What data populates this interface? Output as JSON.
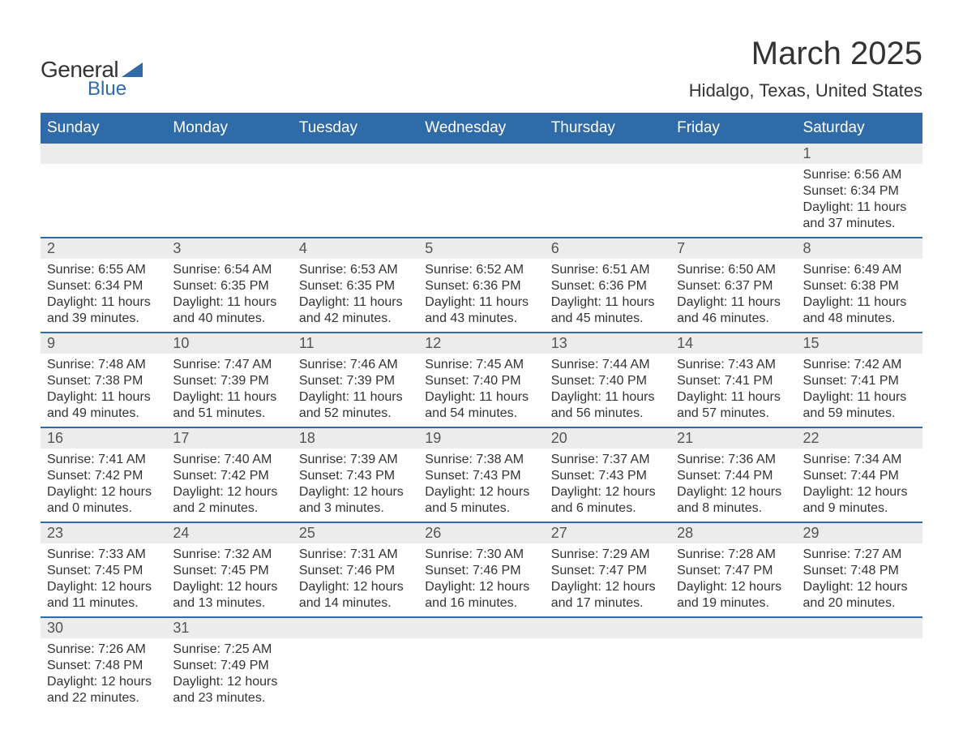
{
  "logo": {
    "line1": "General",
    "line2": "Blue"
  },
  "title": "March 2025",
  "subtitle": "Hidalgo, Texas, United States",
  "colors": {
    "header_bg": "#2f6ba8",
    "header_text": "#ffffff",
    "daynum_bg": "#ececec",
    "daynum_text": "#555555",
    "body_text": "#333333",
    "border": "#2f6ba8",
    "page_bg": "#ffffff"
  },
  "typography": {
    "title_fontsize": 40,
    "subtitle_fontsize": 22,
    "header_fontsize": 19,
    "daynum_fontsize": 18,
    "cell_fontsize": 16
  },
  "day_headers": [
    "Sunday",
    "Monday",
    "Tuesday",
    "Wednesday",
    "Thursday",
    "Friday",
    "Saturday"
  ],
  "weeks": [
    [
      null,
      null,
      null,
      null,
      null,
      null,
      {
        "n": "1",
        "sr": "6:56 AM",
        "ss": "6:34 PM",
        "dl": "11 hours and 37 minutes."
      }
    ],
    [
      {
        "n": "2",
        "sr": "6:55 AM",
        "ss": "6:34 PM",
        "dl": "11 hours and 39 minutes."
      },
      {
        "n": "3",
        "sr": "6:54 AM",
        "ss": "6:35 PM",
        "dl": "11 hours and 40 minutes."
      },
      {
        "n": "4",
        "sr": "6:53 AM",
        "ss": "6:35 PM",
        "dl": "11 hours and 42 minutes."
      },
      {
        "n": "5",
        "sr": "6:52 AM",
        "ss": "6:36 PM",
        "dl": "11 hours and 43 minutes."
      },
      {
        "n": "6",
        "sr": "6:51 AM",
        "ss": "6:36 PM",
        "dl": "11 hours and 45 minutes."
      },
      {
        "n": "7",
        "sr": "6:50 AM",
        "ss": "6:37 PM",
        "dl": "11 hours and 46 minutes."
      },
      {
        "n": "8",
        "sr": "6:49 AM",
        "ss": "6:38 PM",
        "dl": "11 hours and 48 minutes."
      }
    ],
    [
      {
        "n": "9",
        "sr": "7:48 AM",
        "ss": "7:38 PM",
        "dl": "11 hours and 49 minutes."
      },
      {
        "n": "10",
        "sr": "7:47 AM",
        "ss": "7:39 PM",
        "dl": "11 hours and 51 minutes."
      },
      {
        "n": "11",
        "sr": "7:46 AM",
        "ss": "7:39 PM",
        "dl": "11 hours and 52 minutes."
      },
      {
        "n": "12",
        "sr": "7:45 AM",
        "ss": "7:40 PM",
        "dl": "11 hours and 54 minutes."
      },
      {
        "n": "13",
        "sr": "7:44 AM",
        "ss": "7:40 PM",
        "dl": "11 hours and 56 minutes."
      },
      {
        "n": "14",
        "sr": "7:43 AM",
        "ss": "7:41 PM",
        "dl": "11 hours and 57 minutes."
      },
      {
        "n": "15",
        "sr": "7:42 AM",
        "ss": "7:41 PM",
        "dl": "11 hours and 59 minutes."
      }
    ],
    [
      {
        "n": "16",
        "sr": "7:41 AM",
        "ss": "7:42 PM",
        "dl": "12 hours and 0 minutes."
      },
      {
        "n": "17",
        "sr": "7:40 AM",
        "ss": "7:42 PM",
        "dl": "12 hours and 2 minutes."
      },
      {
        "n": "18",
        "sr": "7:39 AM",
        "ss": "7:43 PM",
        "dl": "12 hours and 3 minutes."
      },
      {
        "n": "19",
        "sr": "7:38 AM",
        "ss": "7:43 PM",
        "dl": "12 hours and 5 minutes."
      },
      {
        "n": "20",
        "sr": "7:37 AM",
        "ss": "7:43 PM",
        "dl": "12 hours and 6 minutes."
      },
      {
        "n": "21",
        "sr": "7:36 AM",
        "ss": "7:44 PM",
        "dl": "12 hours and 8 minutes."
      },
      {
        "n": "22",
        "sr": "7:34 AM",
        "ss": "7:44 PM",
        "dl": "12 hours and 9 minutes."
      }
    ],
    [
      {
        "n": "23",
        "sr": "7:33 AM",
        "ss": "7:45 PM",
        "dl": "12 hours and 11 minutes."
      },
      {
        "n": "24",
        "sr": "7:32 AM",
        "ss": "7:45 PM",
        "dl": "12 hours and 13 minutes."
      },
      {
        "n": "25",
        "sr": "7:31 AM",
        "ss": "7:46 PM",
        "dl": "12 hours and 14 minutes."
      },
      {
        "n": "26",
        "sr": "7:30 AM",
        "ss": "7:46 PM",
        "dl": "12 hours and 16 minutes."
      },
      {
        "n": "27",
        "sr": "7:29 AM",
        "ss": "7:47 PM",
        "dl": "12 hours and 17 minutes."
      },
      {
        "n": "28",
        "sr": "7:28 AM",
        "ss": "7:47 PM",
        "dl": "12 hours and 19 minutes."
      },
      {
        "n": "29",
        "sr": "7:27 AM",
        "ss": "7:48 PM",
        "dl": "12 hours and 20 minutes."
      }
    ],
    [
      {
        "n": "30",
        "sr": "7:26 AM",
        "ss": "7:48 PM",
        "dl": "12 hours and 22 minutes."
      },
      {
        "n": "31",
        "sr": "7:25 AM",
        "ss": "7:49 PM",
        "dl": "12 hours and 23 minutes."
      },
      null,
      null,
      null,
      null,
      null
    ]
  ],
  "labels": {
    "sunrise_prefix": "Sunrise: ",
    "sunset_prefix": "Sunset: ",
    "daylight_prefix": "Daylight: "
  }
}
